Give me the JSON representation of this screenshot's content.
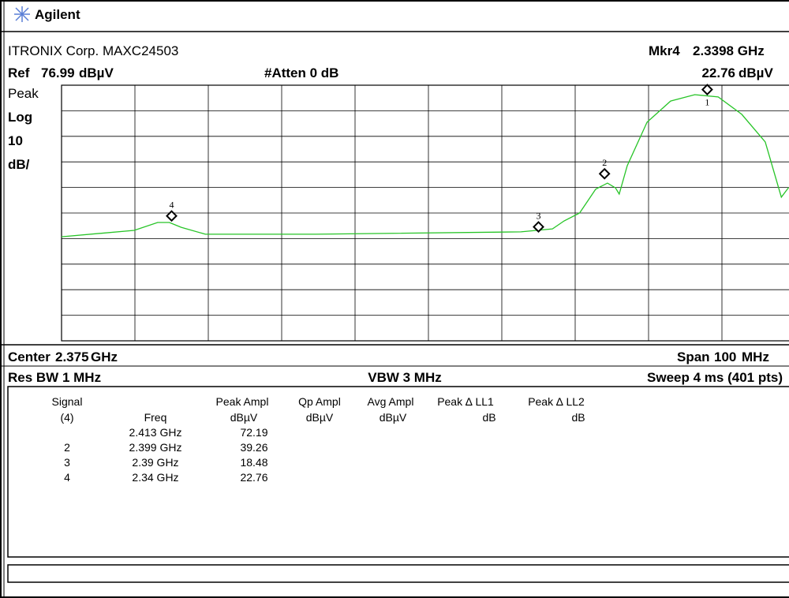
{
  "header": {
    "brand": "Agilent",
    "device": "ITRONIX Corp. MAXC24503",
    "ref": {
      "label": "Ref",
      "value": 76.99,
      "unit": "dBµV"
    },
    "atten": "#Atten 0 dB",
    "marker_readout": {
      "label": "Mkr4",
      "freq": "2.3398 GHz",
      "level": "22.76",
      "unit": "dBµV"
    }
  },
  "scale": {
    "mode": "Peak",
    "type": "Log",
    "db_per_div": 10,
    "unit": "dB/"
  },
  "footer": {
    "center": {
      "label": "Center",
      "value": 2.375,
      "unit": "GHz"
    },
    "span": {
      "label": "Span",
      "value": 100,
      "unit": "MHz"
    },
    "res_bw": "Res BW 1 MHz",
    "vbw": "VBW 3 MHz",
    "sweep": "Sweep 4 ms (401 pts)"
  },
  "trace": {
    "freq_ghz": [
      2.325,
      2.3349,
      2.3381,
      2.3397,
      2.3413,
      2.3446,
      2.3596,
      2.3876,
      2.3919,
      2.3935,
      2.3956,
      2.3978,
      2.3994,
      2.4005,
      2.401,
      2.4021,
      2.4048,
      2.408,
      2.4113,
      2.4145,
      2.4177,
      2.4209,
      2.4231,
      2.4241
    ],
    "level": [
      17.7,
      20.2,
      23.3,
      23.3,
      21.4,
      18.7,
      18.7,
      19.6,
      20.8,
      23.9,
      27,
      36.3,
      38.7,
      36.8,
      34.4,
      45.5,
      62.5,
      70.8,
      73.3,
      72.4,
      65.6,
      54.8,
      33.2,
      37
    ]
  },
  "markers": [
    "1",
    "2",
    "3",
    "4"
  ],
  "table": {
    "headers1": [
      "Signal",
      "Peak Ampl",
      "Qp Ampl",
      "Avg Ampl",
      "Peak ∆ LL1",
      "Peak ∆ LL2"
    ],
    "headers2": [
      "(4)",
      "Freq",
      "dBµV",
      "dBµV",
      "dBµV",
      "dB",
      "dB"
    ],
    "rows": [
      [
        null,
        "2.413 GHz",
        "72.19"
      ],
      [
        "2",
        "2.399 GHz",
        "39.26"
      ],
      [
        "3",
        "2.39 GHz",
        "18.48"
      ],
      [
        "4",
        "2.34 GHz",
        "22.76"
      ]
    ]
  }
}
